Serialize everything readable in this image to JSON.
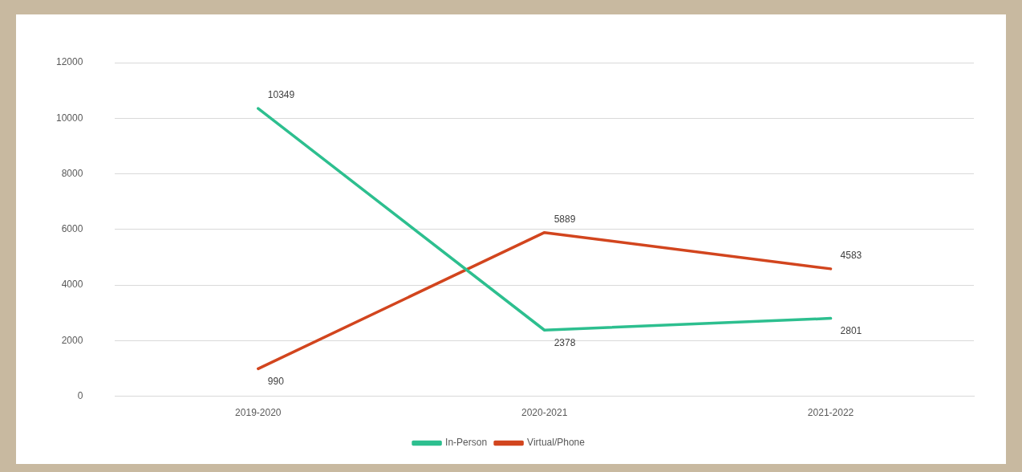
{
  "chart_data": {
    "type": "line",
    "categories": [
      "2019-2020",
      "2020-2021",
      "2021-2022"
    ],
    "series": [
      {
        "name": "In-Person",
        "color": "#2dbf8f",
        "values": [
          10349,
          2378,
          2801
        ]
      },
      {
        "name": "Virtual/Phone",
        "color": "#d2451e",
        "values": [
          990,
          5889,
          4583
        ]
      }
    ],
    "ylim": [
      0,
      12000
    ],
    "yticks": [
      0,
      2000,
      4000,
      6000,
      8000,
      10000,
      12000
    ],
    "grid": "y",
    "legend": "bottom",
    "marker": "none",
    "line_style": "solid",
    "data_labels": true
  }
}
